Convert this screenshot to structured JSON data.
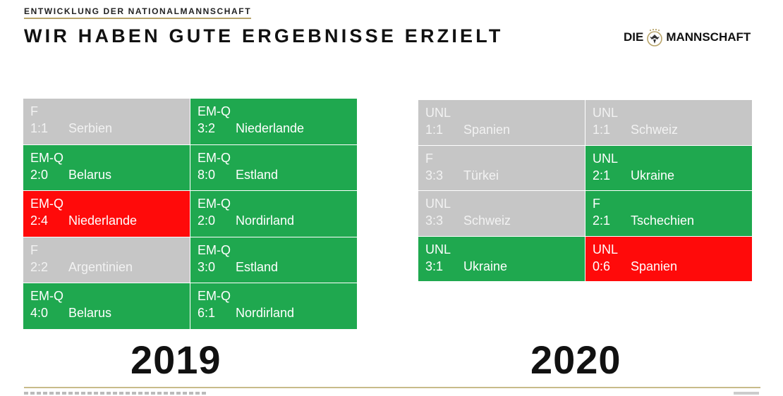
{
  "header": {
    "kicker": "ENTWICKLUNG DER NATIONALMANNSCHAFT",
    "title": "WIR HABEN GUTE ERGEBNISSE ERZIELT",
    "brand_left": "DIE",
    "brand_right": "MANNSCHAFT",
    "brand_icon": "eagle-crest-icon"
  },
  "colors": {
    "win": "#1fa84f",
    "draw": "#c6c6c6",
    "loss": "#ff0a0a",
    "accent": "#b8a46a"
  },
  "results_2019": {
    "year": "2019",
    "matches": [
      {
        "comp": "F",
        "score": "1:1",
        "opponent": "Serbien",
        "outcome": "draw"
      },
      {
        "comp": "EM-Q",
        "score": "3:2",
        "opponent": "Niederlande",
        "outcome": "win"
      },
      {
        "comp": "EM-Q",
        "score": "2:0",
        "opponent": "Belarus",
        "outcome": "win"
      },
      {
        "comp": "EM-Q",
        "score": "8:0",
        "opponent": "Estland",
        "outcome": "win"
      },
      {
        "comp": "EM-Q",
        "score": "2:4",
        "opponent": "Niederlande",
        "outcome": "loss"
      },
      {
        "comp": "EM-Q",
        "score": "2:0",
        "opponent": "Nordirland",
        "outcome": "win"
      },
      {
        "comp": "F",
        "score": "2:2",
        "opponent": "Argentinien",
        "outcome": "draw"
      },
      {
        "comp": "EM-Q",
        "score": "3:0",
        "opponent": "Estland",
        "outcome": "win"
      },
      {
        "comp": "EM-Q",
        "score": "4:0",
        "opponent": "Belarus",
        "outcome": "win"
      },
      {
        "comp": "EM-Q",
        "score": "6:1",
        "opponent": "Nordirland",
        "outcome": "win"
      }
    ]
  },
  "results_2020": {
    "year": "2020",
    "matches": [
      {
        "comp": "UNL",
        "score": "1:1",
        "opponent": "Spanien",
        "outcome": "draw"
      },
      {
        "comp": "UNL",
        "score": "1:1",
        "opponent": "Schweiz",
        "outcome": "draw"
      },
      {
        "comp": "F",
        "score": "3:3",
        "opponent": "Türkei",
        "outcome": "draw"
      },
      {
        "comp": "UNL",
        "score": "2:1",
        "opponent": "Ukraine",
        "outcome": "win"
      },
      {
        "comp": "UNL",
        "score": "3:3",
        "opponent": "Schweiz",
        "outcome": "draw"
      },
      {
        "comp": "F",
        "score": "2:1",
        "opponent": "Tschechien",
        "outcome": "win"
      },
      {
        "comp": "UNL",
        "score": "3:1",
        "opponent": "Ukraine",
        "outcome": "win"
      },
      {
        "comp": "UNL",
        "score": "0:6",
        "opponent": "Spanien",
        "outcome": "loss"
      }
    ]
  }
}
